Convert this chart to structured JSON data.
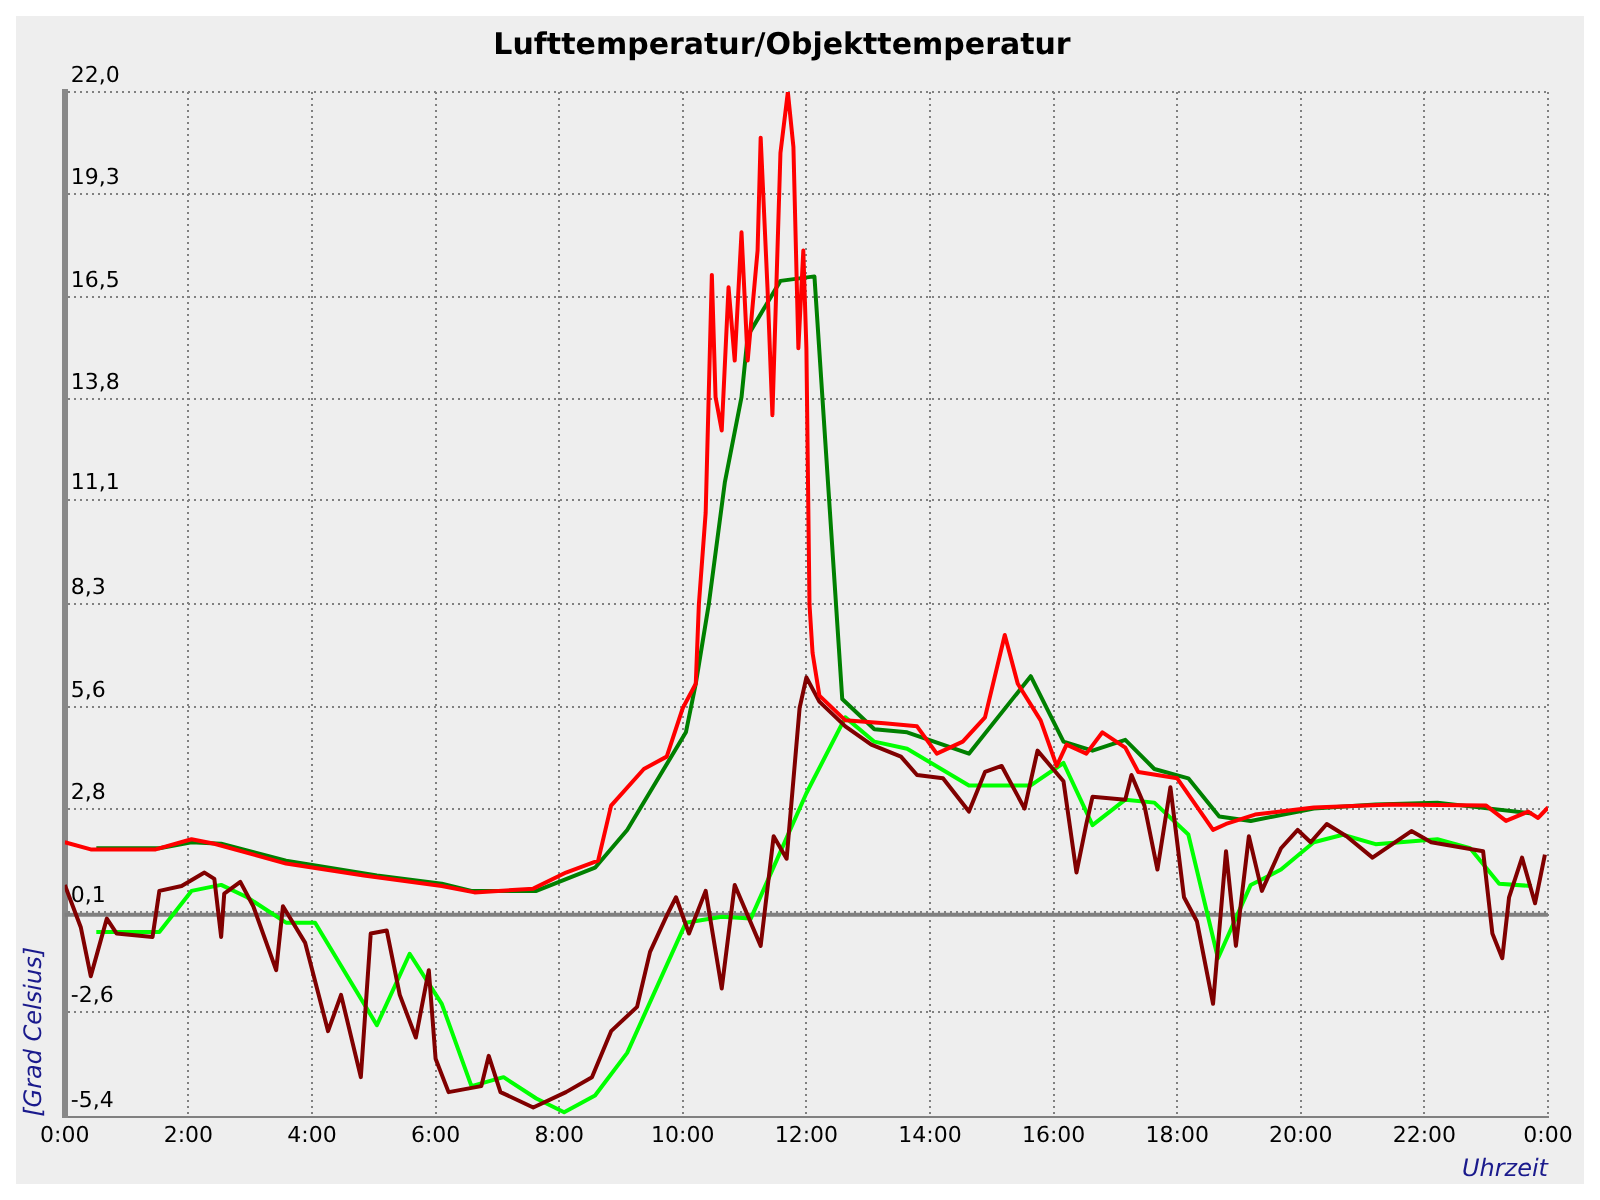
{
  "chart_data": {
    "type": "line",
    "title": "Lufttemperatur/Objekttemperatur",
    "xlabel": "Uhrzeit",
    "ylabel": "[Grad Celsius]",
    "xlim": [
      0,
      24
    ],
    "xticks": [
      {
        "value": 0,
        "label": "0:00"
      },
      {
        "value": 2,
        "label": "2:00"
      },
      {
        "value": 4,
        "label": "4:00"
      },
      {
        "value": 6,
        "label": "6:00"
      },
      {
        "value": 8,
        "label": "8:00"
      },
      {
        "value": 10,
        "label": "10:00"
      },
      {
        "value": 12,
        "label": "12:00"
      },
      {
        "value": 14,
        "label": "14:00"
      },
      {
        "value": 16,
        "label": "16:00"
      },
      {
        "value": 18,
        "label": "18:00"
      },
      {
        "value": 20,
        "label": "20:00"
      },
      {
        "value": 22,
        "label": "22:00"
      },
      {
        "value": 24,
        "label": "0:00"
      }
    ],
    "ylim": [
      -5.4,
      22
    ],
    "yticks": [
      {
        "value": -5.4,
        "label": "-5,4"
      },
      {
        "value": -2.6,
        "label": "-2,6"
      },
      {
        "value": 0.08,
        "label": "0,1"
      },
      {
        "value": 2.82,
        "label": "2,8"
      },
      {
        "value": 5.56,
        "label": "5,6"
      },
      {
        "value": 8.3,
        "label": "8,3"
      },
      {
        "value": 11.1,
        "label": "11,1"
      },
      {
        "value": 13.78,
        "label": "13,8"
      },
      {
        "value": 16.52,
        "label": "16,5"
      },
      {
        "value": 19.26,
        "label": "19,3"
      },
      {
        "value": 22,
        "label": "22,0"
      }
    ],
    "grid": true,
    "legend": false,
    "ref_lines": [
      {
        "axis": "y",
        "value": 0,
        "color": "#808080"
      }
    ],
    "series": [
      {
        "color": "#ff0000",
        "x": [
          0,
          0.42,
          1.47,
          2.05,
          2.42,
          3.58,
          4.84,
          6.1,
          6.63,
          7.58,
          8.11,
          8.63,
          8.84,
          9.37,
          9.74,
          10,
          10.21,
          10.26,
          10.37,
          10.47,
          10.53,
          10.63,
          10.74,
          10.84,
          10.95,
          11.05,
          11.21,
          11.26,
          11.37,
          11.45,
          11.58,
          11.7,
          11.79,
          11.87,
          11.95,
          12,
          12.05,
          12.1,
          12.21,
          12.63,
          13.26,
          13.79,
          14.11,
          14.53,
          14.89,
          15.21,
          15.42,
          15.79,
          16.05,
          16.21,
          16.53,
          16.79,
          17.16,
          17.37,
          18,
          18.58,
          18.79,
          19.26,
          20.21,
          21.47,
          23,
          23.32,
          23.68,
          23.84,
          24
        ],
        "values": [
          1.94,
          1.75,
          1.75,
          2.02,
          1.9,
          1.37,
          1.05,
          0.77,
          0.6,
          0.7,
          1.13,
          1.45,
          2.92,
          3.9,
          4.23,
          5.53,
          6.18,
          8.3,
          10.75,
          17.11,
          13.84,
          12.95,
          16.78,
          14.82,
          18.25,
          14.82,
          17.76,
          20.78,
          16.78,
          13.36,
          20.37,
          22,
          20.53,
          15.15,
          17.76,
          15.15,
          8.3,
          7,
          5.86,
          5.2,
          5.12,
          5.04,
          4.31,
          4.63,
          5.28,
          7.48,
          6.18,
          5.2,
          3.98,
          4.55,
          4.31,
          4.88,
          4.47,
          3.82,
          3.65,
          2.27,
          2.43,
          2.68,
          2.87,
          2.95,
          2.92,
          2.51,
          2.76,
          2.59,
          2.87
        ]
      },
      {
        "color": "#800000",
        "x": [
          0,
          0.26,
          0.42,
          0.53,
          0.68,
          0.84,
          1.42,
          1.53,
          1.89,
          2.26,
          2.42,
          2.53,
          2.58,
          2.84,
          3.05,
          3.42,
          3.53,
          3.89,
          4.26,
          4.47,
          4.79,
          4.95,
          5.21,
          5.42,
          5.68,
          5.89,
          6,
          6.21,
          6.74,
          6.86,
          7.05,
          7.58,
          8.11,
          8.53,
          8.84,
          9.26,
          9.47,
          9.74,
          9.89,
          10.1,
          10.37,
          10.63,
          10.84,
          11.26,
          11.47,
          11.68,
          11.89,
          12,
          12.21,
          12.63,
          13.05,
          13.53,
          13.79,
          14.21,
          14.63,
          14.89,
          15.16,
          15.53,
          15.74,
          15.95,
          16.16,
          16.37,
          16.53,
          16.63,
          17.16,
          17.26,
          17.47,
          17.68,
          17.89,
          18.11,
          18.32,
          18.58,
          18.79,
          18.95,
          19.16,
          19.37,
          19.68,
          19.95,
          20.16,
          20.42,
          20.74,
          21.16,
          21.79,
          22.11,
          22.95,
          23.1,
          23.26,
          23.37,
          23.58,
          23.79,
          23.95
        ],
        "values": [
          0.8,
          -0.34,
          -1.64,
          -0.99,
          -0.1,
          -0.5,
          -0.59,
          0.64,
          0.77,
          1.13,
          0.96,
          -0.59,
          0.57,
          0.88,
          0.23,
          -1.48,
          0.23,
          -0.75,
          -3.11,
          -2.14,
          -4.34,
          -0.5,
          -0.42,
          -2.14,
          -3.28,
          -1.48,
          -3.85,
          -4.74,
          -4.58,
          -3.77,
          -4.74,
          -5.15,
          -4.74,
          -4.34,
          -3.11,
          -2.46,
          -0.99,
          -0.02,
          0.47,
          -0.5,
          0.64,
          -1.97,
          0.8,
          -0.83,
          2.1,
          1.5,
          5.53,
          6.35,
          5.7,
          5.04,
          4.55,
          4.23,
          3.74,
          3.65,
          2.76,
          3.82,
          3.98,
          2.84,
          4.39,
          3.98,
          3.57,
          1.13,
          2.43,
          3.16,
          3.08,
          3.74,
          2.92,
          1.21,
          3.41,
          0.47,
          -0.18,
          -2.38,
          1.7,
          -0.83,
          2.1,
          0.64,
          1.78,
          2.27,
          1.94,
          2.43,
          2.1,
          1.53,
          2.24,
          1.94,
          1.7,
          -0.5,
          -1.16,
          0.47,
          1.53,
          0.31,
          1.61
        ]
      },
      {
        "color": "#008000",
        "x": [
          0.51,
          1.53,
          2.05,
          2.53,
          3.58,
          5.05,
          6.1,
          6.58,
          7.63,
          8.58,
          9.1,
          10.05,
          10.21,
          10.42,
          10.68,
          10.95,
          11.05,
          11.58,
          12.13,
          12.58,
          13.1,
          13.63,
          14.63,
          15.63,
          16.16,
          16.63,
          17.16,
          17.63,
          18.18,
          18.68,
          19.19,
          20.21,
          21.21,
          22.21,
          23.74
        ],
        "values": [
          1.78,
          1.78,
          1.94,
          1.9,
          1.45,
          1.05,
          0.83,
          0.64,
          0.64,
          1.26,
          2.27,
          4.88,
          6.18,
          8.3,
          11.56,
          13.84,
          15.48,
          16.95,
          17.07,
          5.77,
          4.96,
          4.88,
          4.31,
          6.38,
          4.63,
          4.39,
          4.68,
          3.9,
          3.65,
          2.63,
          2.51,
          2.84,
          2.95,
          3,
          2.71
        ]
      },
      {
        "color": "#00ff00",
        "x": [
          0.51,
          1.53,
          2.05,
          2.53,
          2.95,
          3.58,
          4.05,
          5.05,
          5.58,
          6.1,
          6.58,
          7.1,
          7.63,
          8.08,
          8.58,
          9.1,
          10.05,
          10.63,
          11.1,
          12,
          12.63,
          13.1,
          13.63,
          14.63,
          15.63,
          16.16,
          16.63,
          17.16,
          17.63,
          18.18,
          18.66,
          19.19,
          19.68,
          20.21,
          20.68,
          21.21,
          22.21,
          22.74,
          23.21,
          23.74
        ],
        "values": [
          -0.46,
          -0.46,
          0.64,
          0.8,
          0.47,
          -0.21,
          -0.21,
          -2.95,
          -1.04,
          -2.38,
          -4.58,
          -4.34,
          -4.91,
          -5.28,
          -4.83,
          -3.69,
          -0.21,
          -0.05,
          -0.1,
          3.25,
          5.28,
          4.63,
          4.44,
          3.46,
          3.46,
          4.06,
          2.4,
          3.08,
          3,
          2.15,
          -1.16,
          0.8,
          1.21,
          1.94,
          2.14,
          1.89,
          2.02,
          1.78,
          0.83,
          0.77
        ]
      }
    ]
  }
}
